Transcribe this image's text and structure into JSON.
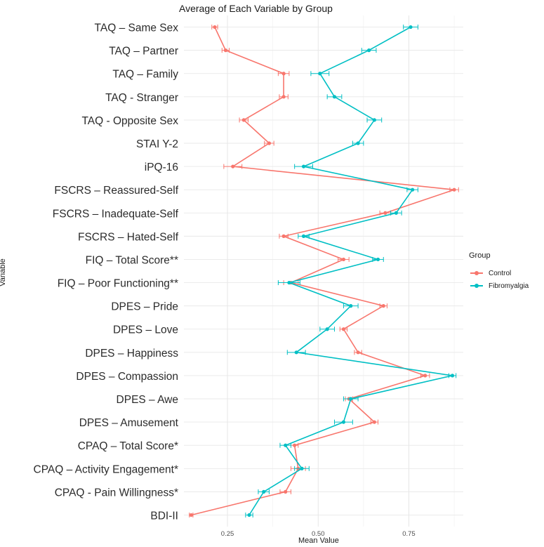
{
  "chart_data": {
    "type": "line",
    "title": "Average of Each Variable by Group",
    "xlabel": "Mean Value",
    "ylabel": "Variable",
    "xlim": [
      0.13,
      0.9
    ],
    "xticks": [
      0.25,
      0.5,
      0.75
    ],
    "xtick_labels": [
      "0.25",
      "0.50",
      "0.75"
    ],
    "grid": true,
    "legend_title": "Group",
    "legend_position": "right",
    "categories": [
      "TAQ – Same Sex",
      "TAQ – Partner",
      "TAQ – Family",
      "TAQ - Stranger",
      "TAQ - Opposite Sex",
      "STAI Y-2",
      "iPQ-16",
      "FSCRS – Reassured-Self",
      "FSCRS – Inadequate-Self",
      "FSCRS – Hated-Self",
      "FIQ – Total Score**",
      "FIQ – Poor Functioning**",
      "DPES – Pride",
      "DPES – Love",
      "DPES – Happiness",
      "DPES – Compassion",
      "DPES – Awe",
      "DPES – Amusement",
      "CPAQ – Total Score*",
      "CPAQ – Activity Engagement*",
      "CPAQ - Pain Willingness*",
      "BDI-II"
    ],
    "series": [
      {
        "name": "Control",
        "color": "#F8766D",
        "values": [
          0.215,
          0.245,
          0.405,
          0.405,
          0.295,
          0.365,
          0.265,
          0.875,
          0.685,
          0.405,
          0.57,
          0.425,
          0.68,
          0.57,
          0.61,
          0.795,
          0.585,
          0.655,
          0.435,
          0.445,
          0.41,
          0.15
        ],
        "errors": [
          0.008,
          0.01,
          0.015,
          0.012,
          0.012,
          0.013,
          0.025,
          0.012,
          0.015,
          0.012,
          0.015,
          0.02,
          0.01,
          0.01,
          0.01,
          0.012,
          0.01,
          0.01,
          0.01,
          0.02,
          0.015,
          0.005
        ]
      },
      {
        "name": "Fibromyalgia",
        "color": "#00BFC4",
        "values": [
          0.755,
          0.64,
          0.505,
          0.545,
          0.655,
          0.61,
          0.46,
          0.76,
          0.715,
          0.46,
          0.665,
          0.42,
          0.59,
          0.525,
          0.44,
          0.87,
          0.59,
          0.57,
          0.41,
          0.455,
          0.35,
          0.31
        ],
        "errors": [
          0.02,
          0.02,
          0.025,
          0.02,
          0.02,
          0.015,
          0.025,
          0.015,
          0.015,
          0.015,
          0.015,
          0.03,
          0.02,
          0.02,
          0.025,
          0.01,
          0.02,
          0.025,
          0.015,
          0.02,
          0.015,
          0.01
        ]
      }
    ]
  }
}
